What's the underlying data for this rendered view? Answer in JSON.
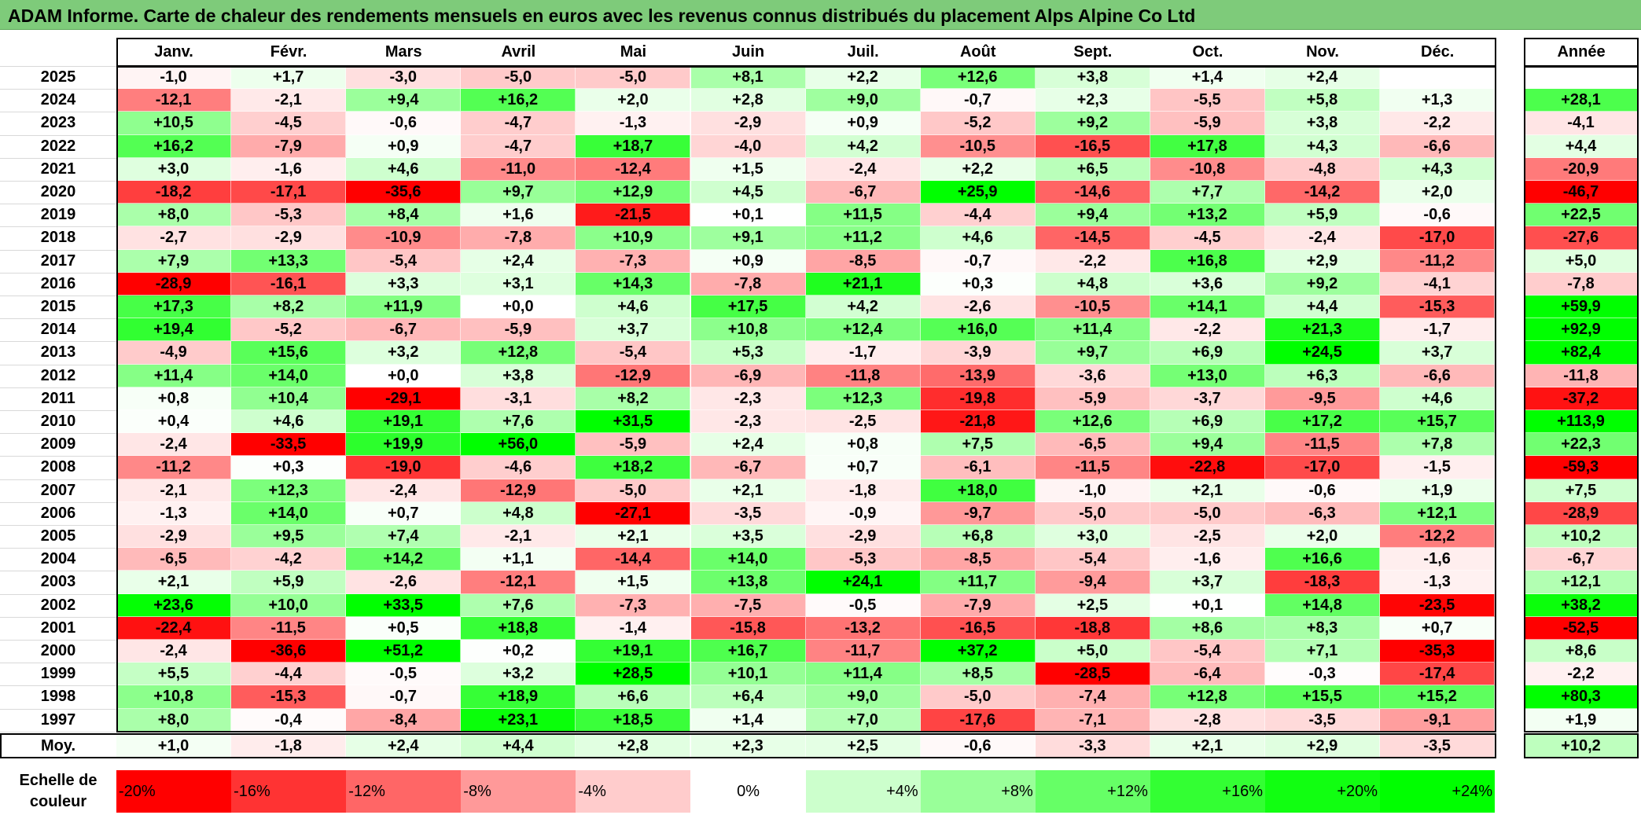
{
  "title": "ADAM Informe. Carte de chaleur des rendements mensuels en euros avec les revenus connus distribués du placement Alps Alpine Co Ltd",
  "chart_data": {
    "type": "heatmap",
    "title": "ADAM Informe. Carte de chaleur des rendements mensuels en euros avec les revenus connus distribués du placement Alps Alpine Co Ltd",
    "months": [
      "Janv.",
      "Févr.",
      "Mars",
      "Avril",
      "Mai",
      "Juin",
      "Juil.",
      "Août",
      "Sept.",
      "Oct.",
      "Nov.",
      "Déc."
    ],
    "year_header": "Année",
    "rows": [
      {
        "year": "2025",
        "values": [
          -1.0,
          1.7,
          -3.0,
          -5.0,
          -5.0,
          8.1,
          2.2,
          12.6,
          3.8,
          1.4,
          2.4,
          null
        ],
        "annual": null
      },
      {
        "year": "2024",
        "values": [
          -12.1,
          -2.1,
          9.4,
          16.2,
          2.0,
          2.8,
          9.0,
          -0.7,
          2.3,
          -5.5,
          5.8,
          1.3
        ],
        "annual": 28.1
      },
      {
        "year": "2023",
        "values": [
          10.5,
          -4.5,
          -0.6,
          -4.7,
          -1.3,
          -2.9,
          0.9,
          -5.2,
          9.2,
          -5.9,
          3.8,
          -2.2
        ],
        "annual": -4.1
      },
      {
        "year": "2022",
        "values": [
          16.2,
          -7.9,
          0.9,
          -4.7,
          18.7,
          -4.0,
          4.2,
          -10.5,
          -16.5,
          17.8,
          4.3,
          -6.6
        ],
        "annual": 4.4
      },
      {
        "year": "2021",
        "values": [
          3.0,
          -1.6,
          4.6,
          -11.0,
          -12.4,
          1.5,
          -2.4,
          2.2,
          6.5,
          -10.8,
          -4.8,
          4.3
        ],
        "annual": -20.9
      },
      {
        "year": "2020",
        "values": [
          -18.2,
          -17.1,
          -35.6,
          9.7,
          12.9,
          4.5,
          -6.7,
          25.9,
          -14.6,
          7.7,
          -14.2,
          2.0
        ],
        "annual": -46.7
      },
      {
        "year": "2019",
        "values": [
          8.0,
          -5.3,
          8.4,
          1.6,
          -21.5,
          0.1,
          11.5,
          -4.4,
          9.4,
          13.2,
          5.9,
          -0.6
        ],
        "annual": 22.5
      },
      {
        "year": "2018",
        "values": [
          -2.7,
          -2.9,
          -10.9,
          -7.8,
          10.9,
          9.1,
          11.2,
          4.6,
          -14.5,
          -4.5,
          -2.4,
          -17.0
        ],
        "annual": -27.6
      },
      {
        "year": "2017",
        "values": [
          7.9,
          13.3,
          -5.4,
          2.4,
          -7.3,
          0.9,
          -8.5,
          -0.7,
          -2.2,
          16.8,
          2.9,
          -11.2
        ],
        "annual": 5.0
      },
      {
        "year": "2016",
        "values": [
          -28.9,
          -16.1,
          3.3,
          3.1,
          14.3,
          -7.8,
          21.1,
          0.3,
          4.8,
          3.6,
          9.2,
          -4.1
        ],
        "annual": -7.8
      },
      {
        "year": "2015",
        "values": [
          17.3,
          8.2,
          11.9,
          0.0,
          4.6,
          17.5,
          4.2,
          -2.6,
          -10.5,
          14.1,
          4.4,
          -15.3
        ],
        "annual": 59.9
      },
      {
        "year": "2014",
        "values": [
          19.4,
          -5.2,
          -6.7,
          -5.9,
          3.7,
          10.8,
          12.4,
          16.0,
          11.4,
          -2.2,
          21.3,
          -1.7
        ],
        "annual": 92.9
      },
      {
        "year": "2013",
        "values": [
          -4.9,
          15.6,
          3.2,
          12.8,
          -5.4,
          5.3,
          -1.7,
          -3.9,
          9.7,
          6.9,
          24.5,
          3.7
        ],
        "annual": 82.4
      },
      {
        "year": "2012",
        "values": [
          11.4,
          14.0,
          0.0,
          3.8,
          -12.9,
          -6.9,
          -11.8,
          -13.9,
          -3.6,
          13.0,
          6.3,
          -6.6
        ],
        "annual": -11.8
      },
      {
        "year": "2011",
        "values": [
          0.8,
          10.4,
          -29.1,
          -3.1,
          8.2,
          -2.3,
          12.3,
          -19.8,
          -5.9,
          -3.7,
          -9.5,
          4.6
        ],
        "annual": -37.2
      },
      {
        "year": "2010",
        "values": [
          0.4,
          4.6,
          19.1,
          7.6,
          31.5,
          -2.3,
          -2.5,
          -21.8,
          12.6,
          6.9,
          17.2,
          15.7
        ],
        "annual": 113.9
      },
      {
        "year": "2009",
        "values": [
          -2.4,
          -33.5,
          19.9,
          56.0,
          -5.9,
          2.4,
          0.8,
          7.5,
          -6.5,
          9.4,
          -11.5,
          7.8
        ],
        "annual": 22.3
      },
      {
        "year": "2008",
        "values": [
          -11.2,
          0.3,
          -19.0,
          -4.6,
          18.2,
          -6.7,
          0.7,
          -6.1,
          -11.5,
          -22.8,
          -17.0,
          -1.5
        ],
        "annual": -59.3
      },
      {
        "year": "2007",
        "values": [
          -2.1,
          12.3,
          -2.4,
          -12.9,
          -5.0,
          2.1,
          -1.8,
          18.0,
          -1.0,
          2.1,
          -0.6,
          1.9
        ],
        "annual": 7.5
      },
      {
        "year": "2006",
        "values": [
          -1.3,
          14.0,
          0.7,
          4.8,
          -27.1,
          -3.5,
          -0.9,
          -9.7,
          -5.0,
          -5.0,
          -6.3,
          12.1
        ],
        "annual": -28.9
      },
      {
        "year": "2005",
        "values": [
          -2.9,
          9.5,
          7.4,
          -2.1,
          2.1,
          3.5,
          -2.9,
          6.8,
          3.0,
          -2.5,
          2.0,
          -12.2
        ],
        "annual": 10.2
      },
      {
        "year": "2004",
        "values": [
          -6.5,
          -4.2,
          14.2,
          1.1,
          -14.4,
          14.0,
          -5.3,
          -8.5,
          -5.4,
          -1.6,
          16.6,
          -1.6
        ],
        "annual": -6.7
      },
      {
        "year": "2003",
        "values": [
          2.1,
          5.9,
          -2.6,
          -12.1,
          1.5,
          13.8,
          24.1,
          11.7,
          -9.4,
          3.7,
          -18.3,
          -1.3
        ],
        "annual": 12.1
      },
      {
        "year": "2002",
        "values": [
          23.6,
          10.0,
          33.5,
          7.6,
          -7.3,
          -7.5,
          -0.5,
          -7.9,
          2.5,
          0.1,
          14.8,
          -23.5
        ],
        "annual": 38.2
      },
      {
        "year": "2001",
        "values": [
          -22.4,
          -11.5,
          0.5,
          18.8,
          -1.4,
          -15.8,
          -13.2,
          -16.5,
          -18.8,
          8.6,
          8.3,
          0.7
        ],
        "annual": -52.5
      },
      {
        "year": "2000",
        "values": [
          -2.4,
          -36.6,
          51.2,
          0.2,
          19.1,
          16.7,
          -11.7,
          37.2,
          5.0,
          -5.4,
          7.1,
          -35.3
        ],
        "annual": 8.6
      },
      {
        "year": "1999",
        "values": [
          5.5,
          -4.4,
          -0.5,
          3.2,
          28.5,
          10.1,
          11.4,
          8.5,
          -28.5,
          -6.4,
          -0.3,
          -17.4
        ],
        "annual": -2.2
      },
      {
        "year": "1998",
        "values": [
          10.8,
          -15.3,
          -0.7,
          18.9,
          6.6,
          6.4,
          9.0,
          -5.0,
          -7.4,
          12.8,
          15.5,
          15.2
        ],
        "annual": 80.3
      },
      {
        "year": "1997",
        "values": [
          8.0,
          -0.4,
          -8.4,
          23.1,
          18.5,
          1.4,
          7.0,
          -17.6,
          -7.1,
          -2.8,
          -3.5,
          -9.1
        ],
        "annual": 1.9
      }
    ],
    "average": {
      "label": "Moy.",
      "values": [
        1.0,
        -1.8,
        2.4,
        4.4,
        2.8,
        2.3,
        2.5,
        -0.6,
        -3.3,
        2.1,
        2.9,
        -3.5
      ],
      "annual": 10.2
    },
    "legend": {
      "label_line1": "Echelle de",
      "label_line2": "couleur",
      "stops": [
        {
          "label": "-20%",
          "value": -20,
          "color": "#ff0000"
        },
        {
          "label": "-16%",
          "value": -16,
          "color": "#ff3333"
        },
        {
          "label": "-12%",
          "value": -12,
          "color": "#ff6666"
        },
        {
          "label": "-8%",
          "value": -8,
          "color": "#ff9999"
        },
        {
          "label": "-4%",
          "value": -4,
          "color": "#ffcccc"
        },
        {
          "label": "0%",
          "value": 0,
          "color": "#ffffff"
        },
        {
          "label": "+4%",
          "value": 4,
          "color": "#ccffcc"
        },
        {
          "label": "+8%",
          "value": 8,
          "color": "#99ff99"
        },
        {
          "label": "+12%",
          "value": 12,
          "color": "#66ff66"
        },
        {
          "label": "+16%",
          "value": 16,
          "color": "#33ff33"
        },
        {
          "label": "+20%",
          "value": 20,
          "color": "#11ff11"
        },
        {
          "label": "+24%",
          "value": 24,
          "color": "#00ff00"
        }
      ]
    },
    "colors": {
      "negative_max": "#ff0000",
      "zero": "#ffffff",
      "positive_max": "#00ff00",
      "title_bg": "#7ecb7a"
    }
  }
}
